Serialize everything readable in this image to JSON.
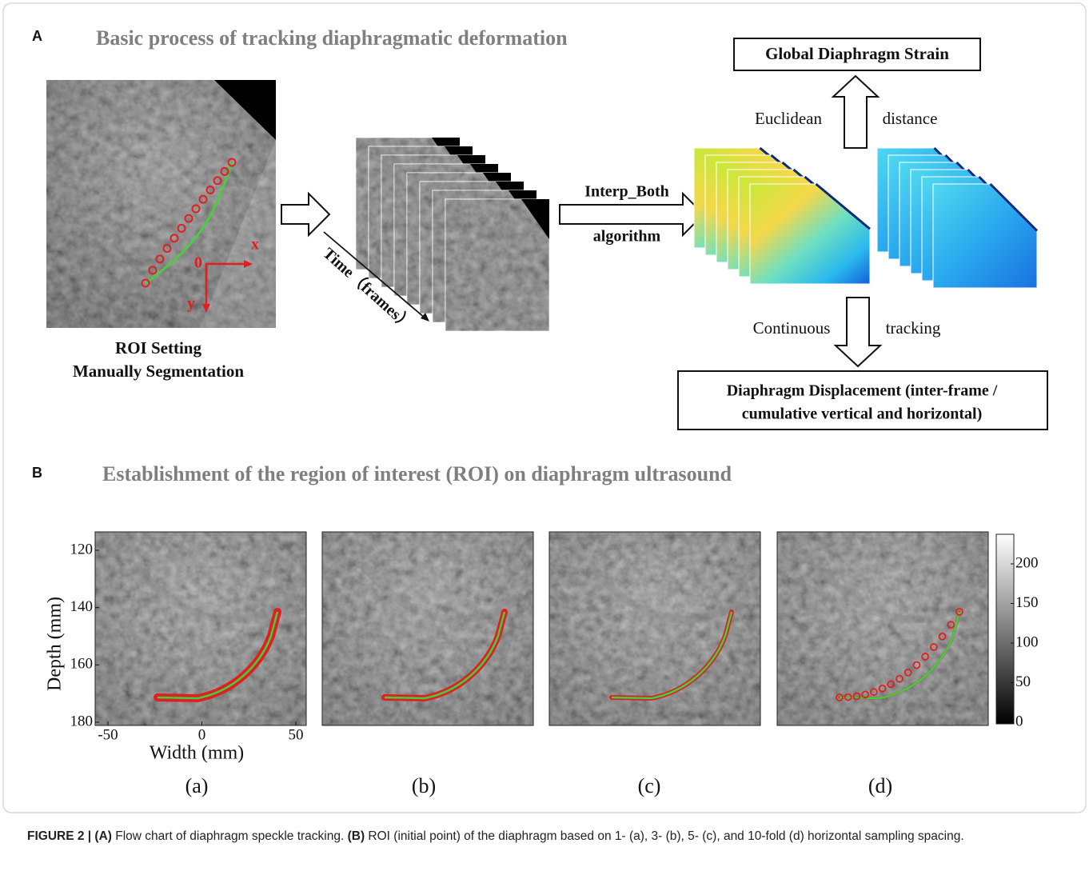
{
  "panel_a": {
    "label": "A",
    "title": "Basic process of tracking diaphragmatic deformation",
    "roi_caption": [
      "ROI Setting",
      "Manually Segmentation"
    ],
    "axis_labels": {
      "origin": "0",
      "x": "x",
      "y": "y"
    },
    "time_label": "Time（frames）",
    "arrow_label": [
      "Interp_Both",
      "algorithm"
    ],
    "strain_box": "Global Diaphragm Strain",
    "up_arrow_label": [
      "Euclidean",
      "distance"
    ],
    "down_arrow_label": [
      "Continuous",
      "tracking"
    ],
    "displacement_box": [
      "Diaphragm Displacement (inter-frame /",
      "cumulative vertical and horizontal)"
    ]
  },
  "panel_b": {
    "label": "B",
    "title": "Establishment of the region of interest (ROI) on diaphragm ultrasound",
    "y_axis_label": "Depth (mm)",
    "x_axis_label": "Width (mm)",
    "yticks": [
      120,
      140,
      160,
      180
    ],
    "xticks": [
      -50,
      0,
      50
    ],
    "colorbar_ticks": [
      0,
      50,
      100,
      150,
      200
    ],
    "subpanels": [
      "(a)",
      "(b)",
      "(c)",
      "(d)"
    ]
  },
  "caption": [
    {
      "text": "FIGURE 2 | (A)",
      "bold": true
    },
    {
      "text": " Flow chart of diaphragm speckle tracking. ",
      "bold": false
    },
    {
      "text": "(B)",
      "bold": true
    },
    {
      "text": " ROI (initial point) of the diaphragm based on 1- (a), 3- (b), 5- (c), and 10-fold (d) horizontal sampling spacing.",
      "bold": false
    }
  ]
}
